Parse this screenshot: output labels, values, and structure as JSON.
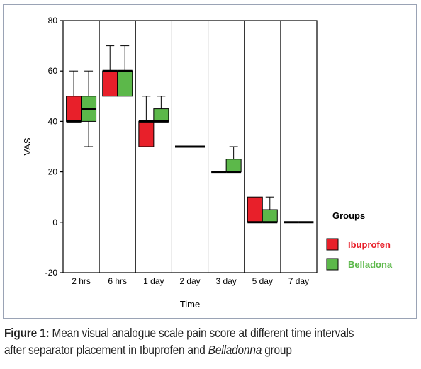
{
  "chart_data": {
    "type": "boxplot",
    "xlabel": "Time",
    "ylabel": "VAS",
    "ylim": [
      -20,
      80
    ],
    "yticks": [
      -20,
      0,
      20,
      40,
      60,
      80
    ],
    "categories": [
      "2 hrs",
      "6 hrs",
      "1 day",
      "2 day",
      "3 day",
      "5 day",
      "7 day"
    ],
    "legend": {
      "title": "Groups",
      "position": "right"
    },
    "series": [
      {
        "name": "Ibuprofen",
        "color": "#e8202a",
        "boxes": [
          {
            "category": "2 hrs",
            "min": 40,
            "q1": 40,
            "median": 40,
            "q3": 50,
            "max": 60
          },
          {
            "category": "6 hrs",
            "min": 50,
            "q1": 50,
            "median": 60,
            "q3": 60,
            "max": 70
          },
          {
            "category": "1 day",
            "min": 30,
            "q1": 30,
            "median": 40,
            "q3": 40,
            "max": 50
          },
          {
            "category": "2 day",
            "min": 30,
            "q1": 30,
            "median": 30,
            "q3": 30,
            "max": 30
          },
          {
            "category": "3 day",
            "min": 20,
            "q1": 20,
            "median": 20,
            "q3": 20,
            "max": 20
          },
          {
            "category": "5 day",
            "min": 0,
            "q1": 0,
            "median": 0,
            "q3": 10,
            "max": 10
          },
          {
            "category": "7 day",
            "min": 0,
            "q1": 0,
            "median": 0,
            "q3": 0,
            "max": 0
          }
        ]
      },
      {
        "name": "Belladona",
        "color": "#5cb84a",
        "boxes": [
          {
            "category": "2 hrs",
            "min": 30,
            "q1": 40,
            "median": 45,
            "q3": 50,
            "max": 60
          },
          {
            "category": "6 hrs",
            "min": 50,
            "q1": 50,
            "median": 60,
            "q3": 60,
            "max": 70
          },
          {
            "category": "1 day",
            "min": 40,
            "q1": 40,
            "median": 40,
            "q3": 45,
            "max": 50
          },
          {
            "category": "2 day",
            "min": 30,
            "q1": 30,
            "median": 30,
            "q3": 30,
            "max": 30
          },
          {
            "category": "3 day",
            "min": 20,
            "q1": 20,
            "median": 20,
            "q3": 25,
            "max": 30
          },
          {
            "category": "5 day",
            "min": 0,
            "q1": 0,
            "median": 0,
            "q3": 5,
            "max": 10
          },
          {
            "category": "7 day",
            "min": 0,
            "q1": 0,
            "median": 0,
            "q3": 0,
            "max": 0
          }
        ]
      }
    ]
  },
  "caption": {
    "label": "Figure 1:",
    "text_part1": " Mean visual analogue scale pain score at different time intervals after separator placement in Ibuprofen and ",
    "italic": "Belladonna",
    "text_part2": " group"
  }
}
